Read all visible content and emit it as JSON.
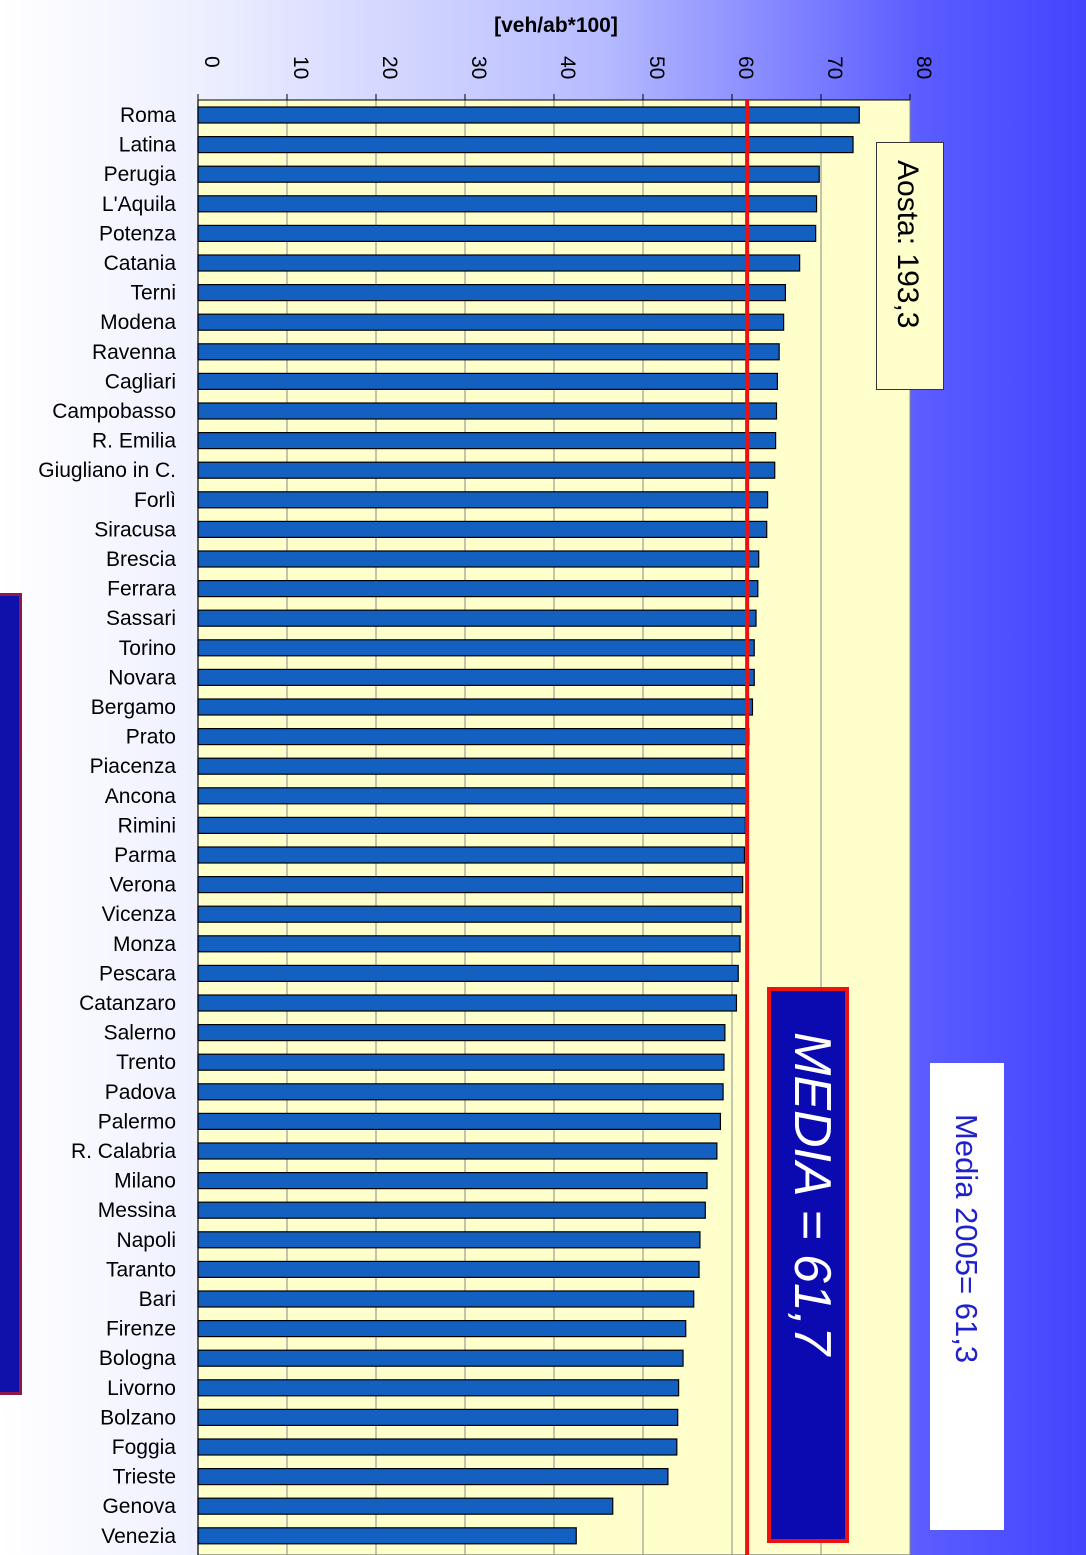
{
  "chart_data": {
    "type": "bar",
    "orientation": "horizontal",
    "xlabel": "[veh/ab*100]",
    "xlim": [
      0,
      80
    ],
    "xticks": [
      0,
      10,
      20,
      30,
      40,
      50,
      60,
      70,
      80
    ],
    "grid": true,
    "reference_line": 61.7,
    "categories": [
      "Roma",
      "Latina",
      "Perugia",
      "L'Aquila",
      "Potenza",
      "Catania",
      "Terni",
      "Modena",
      "Ravenna",
      "Cagliari",
      "Campobasso",
      "R. Emilia",
      "Giugliano in C.",
      "Forlì",
      "Siracusa",
      "Brescia",
      "Ferrara",
      "Sassari",
      "Torino",
      "Novara",
      "Bergamo",
      "Prato",
      "Piacenza",
      "Ancona",
      "Rimini",
      "Parma",
      "Verona",
      "Vicenza",
      "Monza",
      "Pescara",
      "Catanzaro",
      "Salerno",
      "Trento",
      "Padova",
      "Palermo",
      "R. Calabria",
      "Milano",
      "Messina",
      "Napoli",
      "Taranto",
      "Bari",
      "Firenze",
      "Bologna",
      "Livorno",
      "Bolzano",
      "Foggia",
      "Trieste",
      "Genova",
      "Venezia"
    ],
    "values": [
      74.3,
      73.6,
      69.8,
      69.5,
      69.4,
      67.6,
      66.0,
      65.8,
      65.3,
      65.1,
      65.0,
      64.9,
      64.8,
      64.0,
      63.9,
      63.0,
      62.9,
      62.7,
      62.5,
      62.5,
      62.3,
      61.9,
      61.7,
      61.6,
      61.5,
      61.4,
      61.2,
      61.0,
      60.9,
      60.7,
      60.5,
      59.2,
      59.1,
      59.0,
      58.7,
      58.3,
      57.2,
      57.0,
      56.4,
      56.3,
      55.7,
      54.8,
      54.5,
      54.0,
      53.9,
      53.8,
      52.8,
      46.6,
      42.5
    ],
    "bar_color": "#1460c0",
    "plot_background": "#ffffcc",
    "reference_line_color": "#ee1111"
  },
  "annotations": {
    "aosta": "Aosta: 193,3",
    "media": "MEDIA = 61,7",
    "media2005": "Media 2005= 61,3"
  }
}
